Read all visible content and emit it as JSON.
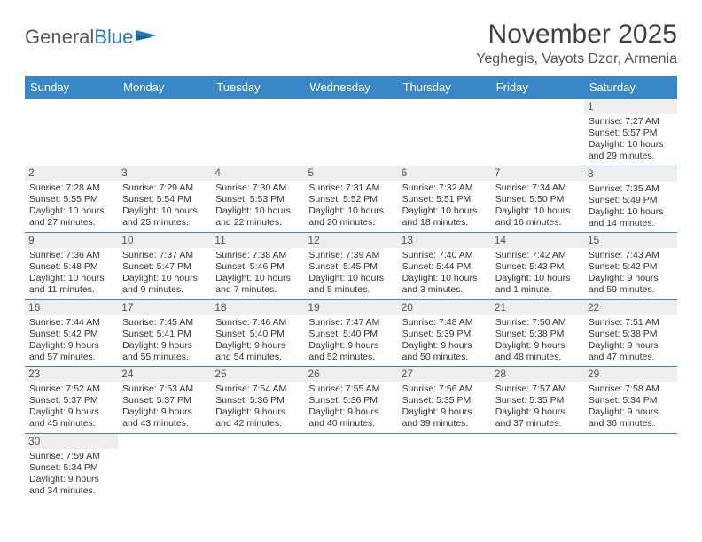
{
  "logo": {
    "text_gray": "General",
    "text_blue": "Blue"
  },
  "title": "November 2025",
  "location": "Yeghegis, Vayots Dzor, Armenia",
  "colors": {
    "header_bg": "#3a87c8",
    "header_fg": "#ffffff",
    "daynum_bg": "#eeeeee",
    "rule": "#3a87c8"
  },
  "day_headers": [
    "Sunday",
    "Monday",
    "Tuesday",
    "Wednesday",
    "Thursday",
    "Friday",
    "Saturday"
  ],
  "weeks": [
    [
      {
        "empty": true
      },
      {
        "empty": true
      },
      {
        "empty": true
      },
      {
        "empty": true
      },
      {
        "empty": true
      },
      {
        "empty": true
      },
      {
        "num": "1",
        "sunrise": "Sunrise: 7:27 AM",
        "sunset": "Sunset: 5:57 PM",
        "day1": "Daylight: 10 hours",
        "day2": "and 29 minutes."
      }
    ],
    [
      {
        "num": "2",
        "sunrise": "Sunrise: 7:28 AM",
        "sunset": "Sunset: 5:55 PM",
        "day1": "Daylight: 10 hours",
        "day2": "and 27 minutes."
      },
      {
        "num": "3",
        "sunrise": "Sunrise: 7:29 AM",
        "sunset": "Sunset: 5:54 PM",
        "day1": "Daylight: 10 hours",
        "day2": "and 25 minutes."
      },
      {
        "num": "4",
        "sunrise": "Sunrise: 7:30 AM",
        "sunset": "Sunset: 5:53 PM",
        "day1": "Daylight: 10 hours",
        "day2": "and 22 minutes."
      },
      {
        "num": "5",
        "sunrise": "Sunrise: 7:31 AM",
        "sunset": "Sunset: 5:52 PM",
        "day1": "Daylight: 10 hours",
        "day2": "and 20 minutes."
      },
      {
        "num": "6",
        "sunrise": "Sunrise: 7:32 AM",
        "sunset": "Sunset: 5:51 PM",
        "day1": "Daylight: 10 hours",
        "day2": "and 18 minutes."
      },
      {
        "num": "7",
        "sunrise": "Sunrise: 7:34 AM",
        "sunset": "Sunset: 5:50 PM",
        "day1": "Daylight: 10 hours",
        "day2": "and 16 minutes."
      },
      {
        "num": "8",
        "sunrise": "Sunrise: 7:35 AM",
        "sunset": "Sunset: 5:49 PM",
        "day1": "Daylight: 10 hours",
        "day2": "and 14 minutes."
      }
    ],
    [
      {
        "num": "9",
        "sunrise": "Sunrise: 7:36 AM",
        "sunset": "Sunset: 5:48 PM",
        "day1": "Daylight: 10 hours",
        "day2": "and 11 minutes."
      },
      {
        "num": "10",
        "sunrise": "Sunrise: 7:37 AM",
        "sunset": "Sunset: 5:47 PM",
        "day1": "Daylight: 10 hours",
        "day2": "and 9 minutes."
      },
      {
        "num": "11",
        "sunrise": "Sunrise: 7:38 AM",
        "sunset": "Sunset: 5:46 PM",
        "day1": "Daylight: 10 hours",
        "day2": "and 7 minutes."
      },
      {
        "num": "12",
        "sunrise": "Sunrise: 7:39 AM",
        "sunset": "Sunset: 5:45 PM",
        "day1": "Daylight: 10 hours",
        "day2": "and 5 minutes."
      },
      {
        "num": "13",
        "sunrise": "Sunrise: 7:40 AM",
        "sunset": "Sunset: 5:44 PM",
        "day1": "Daylight: 10 hours",
        "day2": "and 3 minutes."
      },
      {
        "num": "14",
        "sunrise": "Sunrise: 7:42 AM",
        "sunset": "Sunset: 5:43 PM",
        "day1": "Daylight: 10 hours",
        "day2": "and 1 minute."
      },
      {
        "num": "15",
        "sunrise": "Sunrise: 7:43 AM",
        "sunset": "Sunset: 5:42 PM",
        "day1": "Daylight: 9 hours",
        "day2": "and 59 minutes."
      }
    ],
    [
      {
        "num": "16",
        "sunrise": "Sunrise: 7:44 AM",
        "sunset": "Sunset: 5:42 PM",
        "day1": "Daylight: 9 hours",
        "day2": "and 57 minutes."
      },
      {
        "num": "17",
        "sunrise": "Sunrise: 7:45 AM",
        "sunset": "Sunset: 5:41 PM",
        "day1": "Daylight: 9 hours",
        "day2": "and 55 minutes."
      },
      {
        "num": "18",
        "sunrise": "Sunrise: 7:46 AM",
        "sunset": "Sunset: 5:40 PM",
        "day1": "Daylight: 9 hours",
        "day2": "and 54 minutes."
      },
      {
        "num": "19",
        "sunrise": "Sunrise: 7:47 AM",
        "sunset": "Sunset: 5:40 PM",
        "day1": "Daylight: 9 hours",
        "day2": "and 52 minutes."
      },
      {
        "num": "20",
        "sunrise": "Sunrise: 7:48 AM",
        "sunset": "Sunset: 5:39 PM",
        "day1": "Daylight: 9 hours",
        "day2": "and 50 minutes."
      },
      {
        "num": "21",
        "sunrise": "Sunrise: 7:50 AM",
        "sunset": "Sunset: 5:38 PM",
        "day1": "Daylight: 9 hours",
        "day2": "and 48 minutes."
      },
      {
        "num": "22",
        "sunrise": "Sunrise: 7:51 AM",
        "sunset": "Sunset: 5:38 PM",
        "day1": "Daylight: 9 hours",
        "day2": "and 47 minutes."
      }
    ],
    [
      {
        "num": "23",
        "sunrise": "Sunrise: 7:52 AM",
        "sunset": "Sunset: 5:37 PM",
        "day1": "Daylight: 9 hours",
        "day2": "and 45 minutes."
      },
      {
        "num": "24",
        "sunrise": "Sunrise: 7:53 AM",
        "sunset": "Sunset: 5:37 PM",
        "day1": "Daylight: 9 hours",
        "day2": "and 43 minutes."
      },
      {
        "num": "25",
        "sunrise": "Sunrise: 7:54 AM",
        "sunset": "Sunset: 5:36 PM",
        "day1": "Daylight: 9 hours",
        "day2": "and 42 minutes."
      },
      {
        "num": "26",
        "sunrise": "Sunrise: 7:55 AM",
        "sunset": "Sunset: 5:36 PM",
        "day1": "Daylight: 9 hours",
        "day2": "and 40 minutes."
      },
      {
        "num": "27",
        "sunrise": "Sunrise: 7:56 AM",
        "sunset": "Sunset: 5:35 PM",
        "day1": "Daylight: 9 hours",
        "day2": "and 39 minutes."
      },
      {
        "num": "28",
        "sunrise": "Sunrise: 7:57 AM",
        "sunset": "Sunset: 5:35 PM",
        "day1": "Daylight: 9 hours",
        "day2": "and 37 minutes."
      },
      {
        "num": "29",
        "sunrise": "Sunrise: 7:58 AM",
        "sunset": "Sunset: 5:34 PM",
        "day1": "Daylight: 9 hours",
        "day2": "and 36 minutes."
      }
    ],
    [
      {
        "num": "30",
        "sunrise": "Sunrise: 7:59 AM",
        "sunset": "Sunset: 5:34 PM",
        "day1": "Daylight: 9 hours",
        "day2": "and 34 minutes."
      },
      {
        "empty": true
      },
      {
        "empty": true
      },
      {
        "empty": true
      },
      {
        "empty": true
      },
      {
        "empty": true
      },
      {
        "empty": true
      }
    ]
  ]
}
